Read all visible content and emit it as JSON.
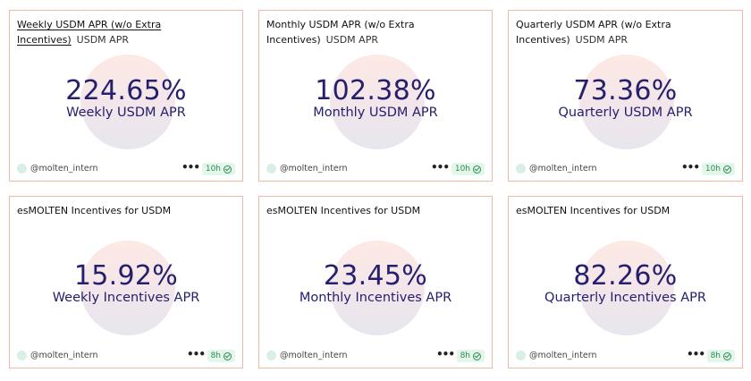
{
  "cards": [
    {
      "title": "Weekly USDM APR (w/o Extra Incentives)",
      "subtitle": "USDM APR",
      "value": "224.65%",
      "label": "Weekly USDM APR",
      "author": "@molten_intern",
      "more": "•••",
      "age": "10h"
    },
    {
      "title": "Monthly USDM APR (w/o Extra Incentives)",
      "subtitle": "USDM APR",
      "value": "102.38%",
      "label": "Monthly USDM APR",
      "author": "@molten_intern",
      "more": "•••",
      "age": "10h"
    },
    {
      "title": "Quarterly USDM APR (w/o Extra Incentives)",
      "subtitle": "USDM APR",
      "value": "73.36%",
      "label": "Quarterly USDM APR",
      "author": "@molten_intern",
      "more": "•••",
      "age": "10h"
    },
    {
      "title": "esMOLTEN Incentives for USDM",
      "value": "15.92%",
      "label": "Weekly Incentives APR",
      "author": "@molten_intern",
      "more": "•••",
      "age": "8h"
    },
    {
      "title": "esMOLTEN Incentives for USDM",
      "value": "23.45%",
      "label": "Monthly Incentives APR",
      "author": "@molten_intern",
      "more": "•••",
      "age": "8h"
    },
    {
      "title": "esMOLTEN Incentives for USDM",
      "value": "82.26%",
      "label": "Quarterly Incentives APR",
      "author": "@molten_intern",
      "more": "•••",
      "age": "8h"
    }
  ],
  "colors": {
    "card_border": "#f2b8a5",
    "value_text": "#25206e",
    "badge_bg": "#e3f6ea",
    "badge_text": "#2f8a57"
  },
  "icons": {
    "avatar": "avatar-icon",
    "more": "more-options-icon",
    "check": "check-circle-icon"
  }
}
